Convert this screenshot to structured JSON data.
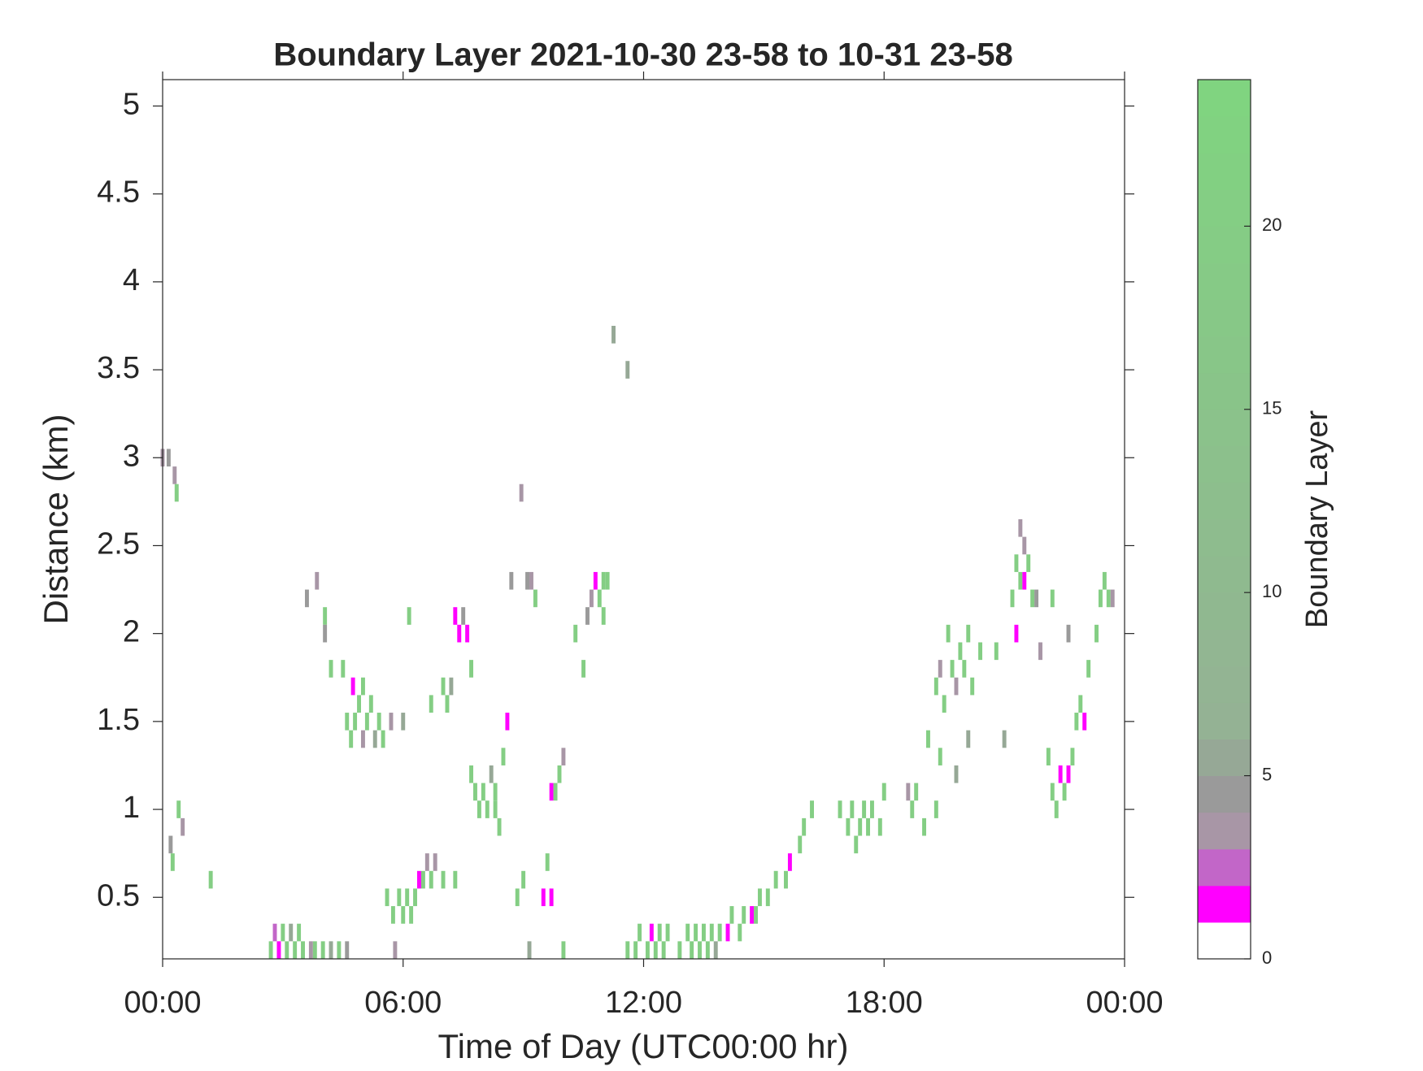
{
  "chart_data": {
    "type": "heatmap",
    "title": "Boundary Layer 2021-10-30 23-58 to 10-31 23-58",
    "x_label": "Time of Day (UTC00:00 hr)",
    "y_label": "Distance (km)",
    "colorbar_label": "Boundary Layer",
    "xlim": [
      0,
      24
    ],
    "xticks": [
      {
        "value": 0,
        "label": "00:00"
      },
      {
        "value": 6,
        "label": "06:00"
      },
      {
        "value": 12,
        "label": "12:00"
      },
      {
        "value": 18,
        "label": "18:00"
      },
      {
        "value": 24,
        "label": "00:00"
      }
    ],
    "ylim": [
      0.15,
      5.15
    ],
    "yticks": [
      0.5,
      1,
      1.5,
      2,
      2.5,
      3,
      3.5,
      4,
      4.5,
      5
    ],
    "clim": [
      0,
      24
    ],
    "cticks": [
      0,
      5,
      10,
      15,
      20
    ],
    "colormap": [
      "#ffffff",
      "#ff00ff",
      "#c266c8",
      "#a896a6",
      "#9a9a9a",
      "#96a896",
      "#94b294",
      "#80d480"
    ],
    "x": [
      0.0,
      0.15,
      0.3,
      0.35,
      0.2,
      0.25,
      0.4,
      0.5,
      1.2,
      2.7,
      2.8,
      2.9,
      3.0,
      3.1,
      3.2,
      3.3,
      3.4,
      3.5,
      3.7,
      3.8,
      4.0,
      4.2,
      4.4,
      4.6,
      3.6,
      3.85,
      4.05,
      4.05,
      4.2,
      4.5,
      4.75,
      4.9,
      5.0,
      4.6,
      4.7,
      4.8,
      5.0,
      5.1,
      5.2,
      5.3,
      5.4,
      5.5,
      5.7,
      6.0,
      6.15,
      5.6,
      5.75,
      5.9,
      6.0,
      6.1,
      6.2,
      6.3,
      6.4,
      6.5,
      6.6,
      6.7,
      6.8,
      7.0,
      7.3,
      5.8,
      7.3,
      7.4,
      7.5,
      7.6,
      7.7,
      6.7,
      7.0,
      7.1,
      7.2,
      7.7,
      7.8,
      7.9,
      8.0,
      8.1,
      8.3,
      8.3,
      8.2,
      8.4,
      8.5,
      8.6,
      8.7,
      8.95,
      9.1,
      9.2,
      9.3,
      9.5,
      9.7,
      9.7,
      9.8,
      9.9,
      10.0,
      9.0,
      8.85,
      9.15,
      9.6,
      10.0,
      10.5,
      10.3,
      10.6,
      10.7,
      10.8,
      11.0,
      11.0,
      11.1,
      10.9,
      11.25,
      11.6,
      11.6,
      11.8,
      11.9,
      12.1,
      12.2,
      12.3,
      12.4,
      12.5,
      12.6,
      12.9,
      13.1,
      13.2,
      13.3,
      13.4,
      13.5,
      13.6,
      13.7,
      13.8,
      13.9,
      14.1,
      14.2,
      14.4,
      14.5,
      14.7,
      14.8,
      14.9,
      15.1,
      15.3,
      15.55,
      15.65,
      15.9,
      16.0,
      16.2,
      16.9,
      17.1,
      17.2,
      17.3,
      17.4,
      17.5,
      17.6,
      17.7,
      17.9,
      18.0,
      18.6,
      18.7,
      18.8,
      19.0,
      19.1,
      19.3,
      19.4,
      19.3,
      19.4,
      19.5,
      19.6,
      19.7,
      19.8,
      19.9,
      20.0,
      20.2,
      20.1,
      20.4,
      20.8,
      21.2,
      21.3,
      21.4,
      21.5,
      21.5,
      21.6,
      21.7,
      21.8,
      21.3,
      21.9,
      22.2,
      22.6,
      22.1,
      22.2,
      22.3,
      22.4,
      22.5,
      22.6,
      22.7,
      22.8,
      22.9,
      23.0,
      23.1,
      23.3,
      23.4,
      23.5,
      23.6,
      23.7,
      21.4,
      20.1,
      21.0,
      19.8
    ],
    "y": [
      3.0,
      3.0,
      2.9,
      2.8,
      0.8,
      0.7,
      1.0,
      0.9,
      0.6,
      0.2,
      0.3,
      0.2,
      0.3,
      0.2,
      0.3,
      0.2,
      0.3,
      0.2,
      0.2,
      0.2,
      0.2,
      0.2,
      0.2,
      0.2,
      2.2,
      2.3,
      2.1,
      2.0,
      1.8,
      1.8,
      1.7,
      1.6,
      1.7,
      1.5,
      1.4,
      1.5,
      1.4,
      1.5,
      1.6,
      1.4,
      1.5,
      1.4,
      1.5,
      1.5,
      2.1,
      0.5,
      0.4,
      0.5,
      0.4,
      0.5,
      0.4,
      0.5,
      0.6,
      0.6,
      0.7,
      0.6,
      0.7,
      0.6,
      0.6,
      0.2,
      2.1,
      2.0,
      2.1,
      2.0,
      1.8,
      1.6,
      1.7,
      1.6,
      1.7,
      1.2,
      1.1,
      1.0,
      1.1,
      1.0,
      1.1,
      1.0,
      1.2,
      0.9,
      1.3,
      1.5,
      2.3,
      2.8,
      2.3,
      2.3,
      2.2,
      0.5,
      0.5,
      1.1,
      1.1,
      1.2,
      1.3,
      0.6,
      0.5,
      0.2,
      0.7,
      0.2,
      1.8,
      2.0,
      2.1,
      2.2,
      2.3,
      2.3,
      2.1,
      2.3,
      2.2,
      3.7,
      3.5,
      0.2,
      0.2,
      0.3,
      0.2,
      0.3,
      0.2,
      0.3,
      0.2,
      0.3,
      0.2,
      0.3,
      0.2,
      0.3,
      0.2,
      0.3,
      0.2,
      0.3,
      0.2,
      0.3,
      0.3,
      0.4,
      0.3,
      0.4,
      0.4,
      0.4,
      0.5,
      0.5,
      0.6,
      0.6,
      0.7,
      0.8,
      0.9,
      1.0,
      1.0,
      0.9,
      1.0,
      0.8,
      0.9,
      1.0,
      0.9,
      1.0,
      0.9,
      1.1,
      1.1,
      1.0,
      1.1,
      0.9,
      1.4,
      1.0,
      1.3,
      1.7,
      1.8,
      1.6,
      2.0,
      1.8,
      1.7,
      1.9,
      1.8,
      1.7,
      2.0,
      1.9,
      1.9,
      2.2,
      2.4,
      2.3,
      2.3,
      2.5,
      2.4,
      2.2,
      2.2,
      2.0,
      1.9,
      2.2,
      2.0,
      1.3,
      1.1,
      1.0,
      1.2,
      1.1,
      1.2,
      1.3,
      1.5,
      1.6,
      1.5,
      1.8,
      2.0,
      2.2,
      2.3,
      2.2,
      2.2,
      2.6,
      1.4,
      1.4,
      1.2
    ],
    "values": [
      3.5,
      4.5,
      3,
      20,
      4,
      20,
      20,
      3.5,
      20,
      20,
      2,
      1.5,
      20,
      20,
      5,
      20,
      20,
      20,
      3.5,
      20,
      20,
      5,
      20,
      4,
      4,
      3.5,
      20,
      4,
      20,
      20,
      1.5,
      20,
      20,
      20,
      20,
      20,
      3.5,
      20,
      20,
      5,
      20,
      20,
      3.5,
      5,
      20,
      20,
      20,
      20,
      20,
      20,
      20,
      20,
      1.5,
      20,
      3.5,
      20,
      3,
      20,
      20,
      3.5,
      1.5,
      1.5,
      4,
      1.5,
      20,
      20,
      20,
      20,
      5,
      20,
      20,
      20,
      20,
      20,
      20,
      20,
      5,
      20,
      20,
      1.5,
      4,
      3.5,
      4,
      3.5,
      20,
      1.5,
      1.5,
      1.5,
      20,
      20,
      3.5,
      20,
      20,
      5,
      20,
      20,
      20,
      20,
      4,
      3.5,
      1.5,
      20,
      20,
      20,
      20,
      5,
      5,
      20,
      20,
      20,
      20,
      1.5,
      20,
      20,
      20,
      20,
      20,
      20,
      20,
      20,
      20,
      20,
      20,
      20,
      5,
      20,
      1.5,
      20,
      20,
      20,
      1.5,
      20,
      20,
      20,
      20,
      20,
      1.5,
      20,
      20,
      20,
      20,
      20,
      20,
      20,
      20,
      20,
      20,
      20,
      20,
      20,
      3.5,
      20,
      20,
      20,
      20,
      20,
      20,
      20,
      3.5,
      20,
      20,
      20,
      3.5,
      20,
      20,
      20,
      20,
      20,
      20,
      20,
      20,
      20,
      1.5,
      3.5,
      20,
      20,
      4,
      1.5,
      3,
      20,
      4,
      20,
      20,
      20,
      1.5,
      20,
      1.5,
      20,
      20,
      20,
      1.5,
      20,
      20,
      20,
      20,
      20,
      3.5,
      3,
      5,
      5,
      5
    ]
  }
}
